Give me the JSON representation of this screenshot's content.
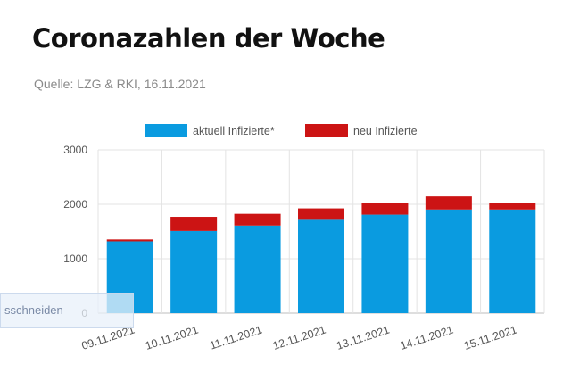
{
  "chart_data": {
    "type": "bar",
    "stacked": true,
    "title": "Coronazahlen der Woche",
    "subtitle": "Quelle: LZG & RKI, 16.11.2021",
    "categories": [
      "09.11.2021",
      "10.11.2021",
      "11.11.2021",
      "12.11.2021",
      "13.11.2021",
      "14.11.2021",
      "15.11.2021"
    ],
    "series": [
      {
        "name": "aktuell Infizierte*",
        "color": "#0a9be0",
        "values": [
          1320,
          1510,
          1610,
          1715,
          1810,
          1905,
          1905
        ]
      },
      {
        "name": "neu Infizierte",
        "color": "#cc1414",
        "values": [
          35,
          260,
          215,
          210,
          210,
          240,
          120
        ]
      }
    ],
    "yticks": [
      0,
      1000,
      2000,
      3000
    ],
    "ylim": [
      0,
      3000
    ],
    "grid": true,
    "legend_position": "top-center"
  },
  "overlay": {
    "text": "sschneiden"
  }
}
